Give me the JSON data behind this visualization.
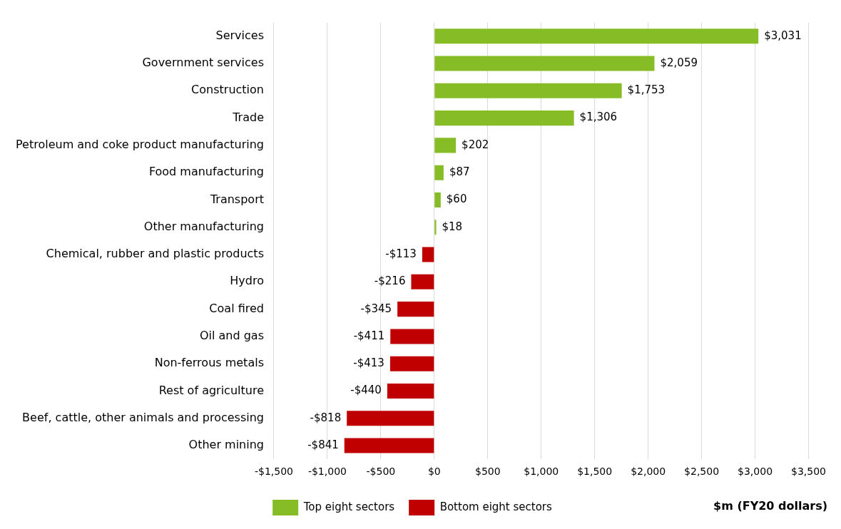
{
  "chart_data": {
    "type": "bar",
    "orientation": "horizontal",
    "xlabel": "$m (FY20 dollars)",
    "categories": [
      "Services",
      "Government services",
      "Construction",
      "Trade",
      "Petroleum and coke product manufacturing",
      "Food manufacturing",
      "Transport",
      "Other manufacturing",
      "Chemical, rubber and plastic products",
      "Hydro",
      "Coal fired",
      "Oil and gas",
      "Non-ferrous metals",
      "Rest of agriculture",
      "Beef, cattle, other animals and processing",
      "Other mining"
    ],
    "series": [
      {
        "name": "Top eight sectors",
        "color": "#86bc25",
        "values": [
          3031,
          2059,
          1753,
          1306,
          202,
          87,
          60,
          18,
          null,
          null,
          null,
          null,
          null,
          null,
          null,
          null
        ],
        "value_labels": [
          "$3,031",
          "$2,059",
          "$1,753",
          "$1,306",
          "$202",
          "$87",
          "$60",
          "$18",
          null,
          null,
          null,
          null,
          null,
          null,
          null,
          null
        ]
      },
      {
        "name": "Bottom eight sectors",
        "color": "#c00000",
        "values": [
          null,
          null,
          null,
          null,
          null,
          null,
          null,
          null,
          -113,
          -216,
          -345,
          -411,
          -413,
          -440,
          -818,
          -841
        ],
        "value_labels": [
          null,
          null,
          null,
          null,
          null,
          null,
          null,
          null,
          "-$113",
          "-$216",
          "-$345",
          "-$411",
          "-$413",
          "-$440",
          "-$818",
          "-$841"
        ]
      }
    ],
    "xlim": [
      -1500,
      3500
    ],
    "xticks": [
      {
        "value": -1500,
        "label": "-$1,500"
      },
      {
        "value": -1000,
        "label": "-$1,000"
      },
      {
        "value": -500,
        "label": "-$500"
      },
      {
        "value": 0,
        "label": "$0"
      },
      {
        "value": 500,
        "label": "$500"
      },
      {
        "value": 1000,
        "label": "$1,000"
      },
      {
        "value": 1500,
        "label": "$1,500"
      },
      {
        "value": 2000,
        "label": "$2,000"
      },
      {
        "value": 2500,
        "label": "$2,500"
      },
      {
        "value": 3000,
        "label": "$3,000"
      },
      {
        "value": 3500,
        "label": "$3,500"
      }
    ],
    "grid": "x",
    "legend": "bottom"
  }
}
